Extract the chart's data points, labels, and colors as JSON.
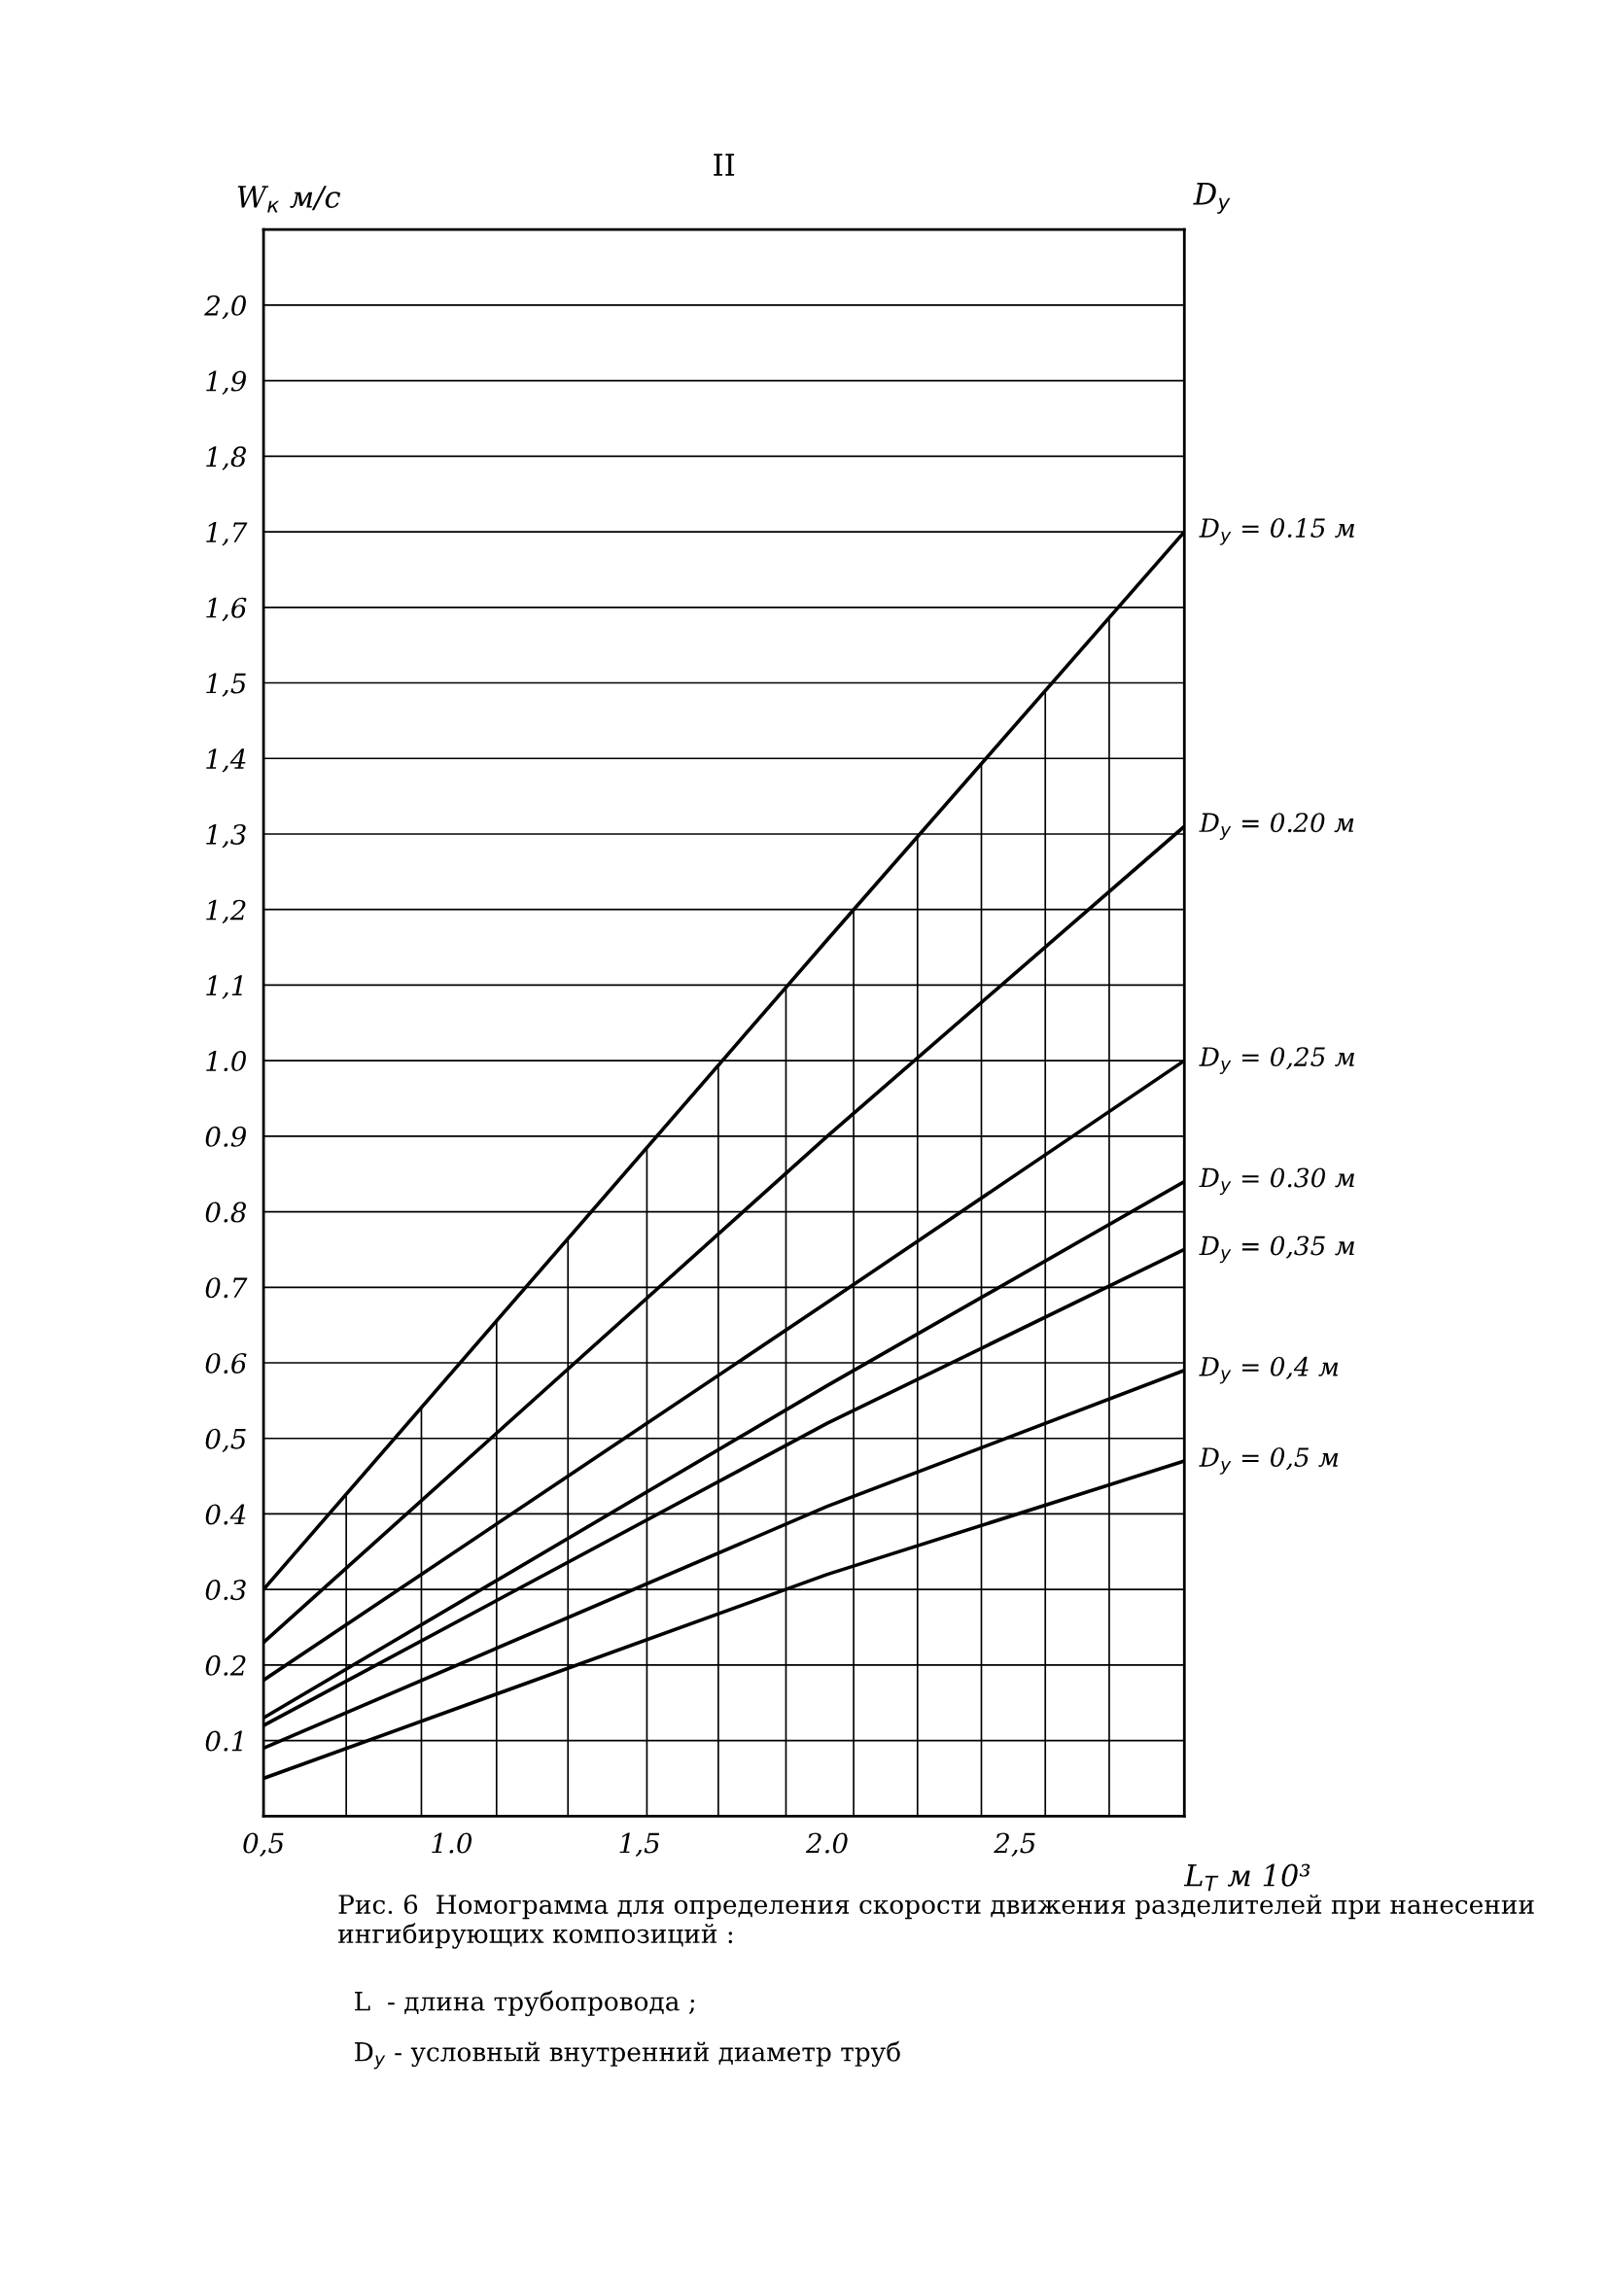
{
  "chart_data": {
    "type": "line",
    "title": "II",
    "xlabel": "L$_{T}$ м 10³",
    "ylabel": "W$_{к}$ м/с",
    "y2label": "D$_{y}$",
    "xlim": [
      0.5,
      2.95
    ],
    "ylim": [
      0,
      2.1
    ],
    "xticks": [
      {
        "value": 0.5,
        "label": "0,5"
      },
      {
        "value": 1.0,
        "label": "1.0"
      },
      {
        "value": 1.5,
        "label": "1,5"
      },
      {
        "value": 2.0,
        "label": "2.0"
      },
      {
        "value": 2.5,
        "label": "2,5"
      }
    ],
    "yticks": [
      {
        "value": 0.1,
        "label": "0.1"
      },
      {
        "value": 0.2,
        "label": "0.2"
      },
      {
        "value": 0.3,
        "label": "0.3"
      },
      {
        "value": 0.4,
        "label": "0.4"
      },
      {
        "value": 0.5,
        "label": "0,5"
      },
      {
        "value": 0.6,
        "label": "0.6"
      },
      {
        "value": 0.7,
        "label": "0.7"
      },
      {
        "value": 0.8,
        "label": "0.8"
      },
      {
        "value": 0.9,
        "label": "0.9"
      },
      {
        "value": 1.0,
        "label": "1.0"
      },
      {
        "value": 1.1,
        "label": "1,1"
      },
      {
        "value": 1.2,
        "label": "1,2"
      },
      {
        "value": 1.3,
        "label": "1,3"
      },
      {
        "value": 1.4,
        "label": "1,4"
      },
      {
        "value": 1.5,
        "label": "1,5"
      },
      {
        "value": 1.6,
        "label": "1,6"
      },
      {
        "value": 1.7,
        "label": "1,7"
      },
      {
        "value": 1.8,
        "label": "1,8"
      },
      {
        "value": 1.9,
        "label": "1,9"
      },
      {
        "value": 2.0,
        "label": "2,0"
      }
    ],
    "x": [
      0.5,
      2.0,
      2.95
    ],
    "series": [
      {
        "name": "D$_{y}$ = 0.15 м",
        "color": "#000000",
        "values": [
          0.3,
          1.16,
          1.7
        ]
      },
      {
        "name": "D$_{y}$ = 0.20 м",
        "color": "#000000",
        "values": [
          0.23,
          0.9,
          1.31
        ]
      },
      {
        "name": "D$_{y}$ = 0,25 м",
        "color": "#000000",
        "values": [
          0.18,
          0.68,
          1.0
        ]
      },
      {
        "name": "D$_{y}$ = 0.30 м",
        "color": "#000000",
        "values": [
          0.13,
          0.57,
          0.84
        ]
      },
      {
        "name": "D$_{y}$ = 0,35 м",
        "color": "#000000",
        "values": [
          0.12,
          0.52,
          0.75
        ]
      },
      {
        "name": "D$_{y}$ = 0,4 м",
        "color": "#000000",
        "values": [
          0.09,
          0.41,
          0.59
        ]
      },
      {
        "name": "D$_{y}$ = 0,5 м",
        "color": "#000000",
        "values": [
          0.05,
          0.32,
          0.47
        ]
      }
    ],
    "ref_lines": [
      {
        "axis": "x",
        "value": 0.72
      },
      {
        "axis": "x",
        "value": 0.92
      },
      {
        "axis": "x",
        "value": 1.12
      },
      {
        "axis": "x",
        "value": 1.31
      },
      {
        "axis": "x",
        "value": 1.52
      },
      {
        "axis": "x",
        "value": 1.71
      },
      {
        "axis": "x",
        "value": 1.89
      },
      {
        "axis": "x",
        "value": 2.07
      },
      {
        "axis": "x",
        "value": 2.24
      },
      {
        "axis": "x",
        "value": 2.41
      },
      {
        "axis": "x",
        "value": 2.58
      },
      {
        "axis": "x",
        "value": 2.75
      }
    ],
    "grid": "y",
    "line_style": "solid",
    "marker": "none",
    "legend": false,
    "annotations": [
      "Рис. 6  Номограмма для определения скорости движения разделителей при нанесении ингибирующих композиций :",
      "L  - длина трубопровода ;",
      "D$_{y}$ - условный внутренний диаметр труб"
    ]
  }
}
